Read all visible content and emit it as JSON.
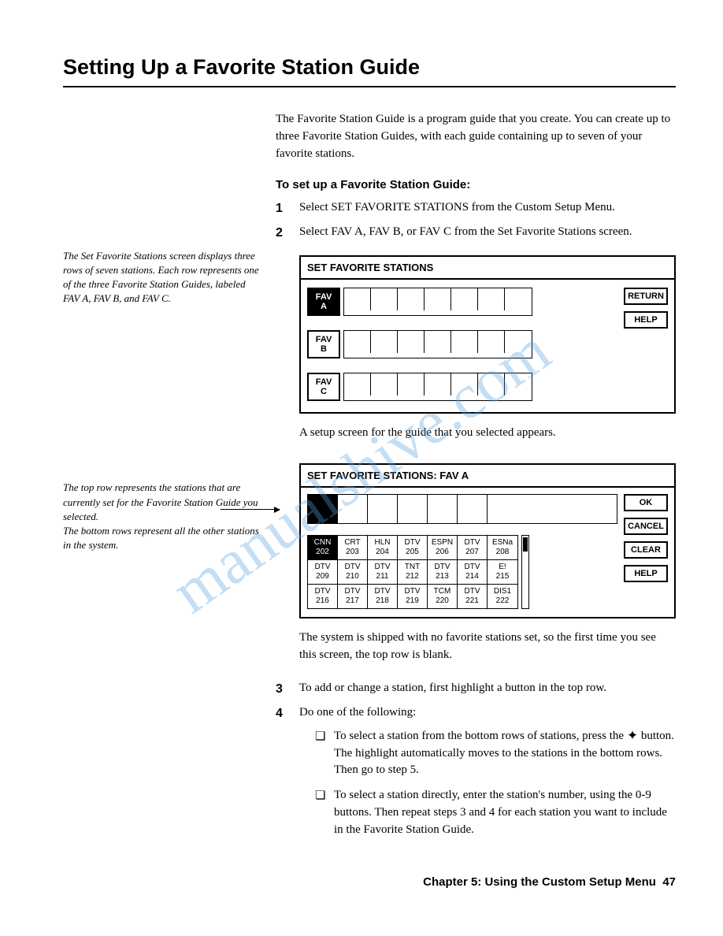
{
  "title": "Setting Up a Favorite Station Guide",
  "intro": "The Favorite Station Guide is a program guide that you create. You can create up to three Favorite Station Guides, with each guide containing up to seven of your favorite stations.",
  "subhead": "To set up a Favorite Station Guide:",
  "step1": "Select SET FAVORITE STATIONS from the Custom Setup Menu.",
  "step2": "Select FAV A, FAV B, or FAV C from the Set Favorite Stations screen.",
  "sidenote1": "The Set Favorite Stations screen displays three rows of seven stations. Each row represents one of the three Favorite Station Guides, labeled FAV A, FAV B, and FAV C.",
  "screen1": {
    "title": "SET FAVORITE STATIONS",
    "rows": [
      "FAV A",
      "FAV B",
      "FAV C"
    ],
    "slots_per_row": 7,
    "buttons": {
      "return": "RETURN",
      "help": "HELP"
    }
  },
  "after_screen1": "A setup screen for the guide that you selected appears.",
  "sidenote2a": "The top row represents the stations that are currently set for the Favorite Station Guide you selected.",
  "sidenote2b": "The bottom rows represent all the other stations in the system.",
  "screen2": {
    "title": "SET FAVORITE STATIONS: FAV A",
    "top_slots": 7,
    "buttons": {
      "ok": "OK",
      "cancel": "CANCEL",
      "clear": "CLEAR",
      "help": "HELP"
    },
    "grid": [
      [
        {
          "name": "CNN",
          "num": "202",
          "sel": true
        },
        {
          "name": "CRT",
          "num": "203"
        },
        {
          "name": "HLN",
          "num": "204"
        },
        {
          "name": "DTV",
          "num": "205"
        },
        {
          "name": "ESPN",
          "num": "206"
        },
        {
          "name": "DTV",
          "num": "207"
        },
        {
          "name": "ESNa",
          "num": "208"
        }
      ],
      [
        {
          "name": "DTV",
          "num": "209"
        },
        {
          "name": "DTV",
          "num": "210"
        },
        {
          "name": "DTV",
          "num": "211"
        },
        {
          "name": "TNT",
          "num": "212"
        },
        {
          "name": "DTV",
          "num": "213"
        },
        {
          "name": "DTV",
          "num": "214"
        },
        {
          "name": "E!",
          "num": "215"
        }
      ],
      [
        {
          "name": "DTV",
          "num": "216"
        },
        {
          "name": "DTV",
          "num": "217"
        },
        {
          "name": "DTV",
          "num": "218"
        },
        {
          "name": "DTV",
          "num": "219"
        },
        {
          "name": "TCM",
          "num": "220"
        },
        {
          "name": "DTV",
          "num": "221"
        },
        {
          "name": "DIS1",
          "num": "222"
        }
      ]
    ]
  },
  "after_screen2": "The system is shipped with no favorite stations set, so the first time you see this screen, the top row is blank.",
  "step3": "To add or change a station, first highlight a button in the top row.",
  "step4": "Do one of the following:",
  "bullet1_a": "To select a station from the bottom rows of stations, press the ",
  "bullet1_b": " button. The highlight automatically moves to the stations in the bottom rows. Then go to step 5.",
  "bullet2": "To select a station directly, enter the station's number, using the 0-9 buttons. Then repeat steps 3 and 4 for each station you want to include in the Favorite Station Guide.",
  "footer_chapter": "Chapter 5: Using the Custom Setup Menu",
  "footer_page": "47",
  "watermark": "manualshive.com",
  "colors": {
    "text": "#000000",
    "bg": "#ffffff",
    "watermark": "rgba(90,160,220,0.35)"
  }
}
